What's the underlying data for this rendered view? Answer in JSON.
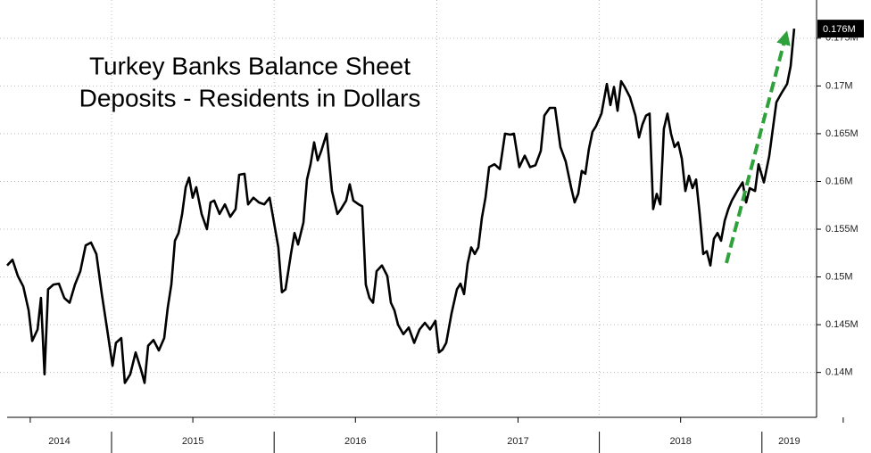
{
  "chart_data": {
    "type": "line",
    "title_lines": [
      "Turkey Banks Balance Sheet",
      "Deposits - Residents in Dollars"
    ],
    "color": "#000000",
    "x": [
      2014.358,
      2014.391,
      2014.424,
      2014.457,
      2014.49,
      2014.512,
      2014.545,
      2014.566,
      2014.588,
      2014.61,
      2014.643,
      2014.676,
      2014.709,
      2014.742,
      2014.775,
      2014.808,
      2014.841,
      2014.874,
      2014.907,
      2014.94,
      2014.973,
      2015.006,
      2015.027,
      2015.06,
      2015.082,
      2015.115,
      2015.148,
      2015.181,
      2015.203,
      2015.225,
      2015.258,
      2015.291,
      2015.324,
      2015.346,
      2015.368,
      2015.39,
      2015.412,
      2015.434,
      2015.456,
      2015.477,
      2015.499,
      2015.521,
      2015.554,
      2015.587,
      2015.609,
      2015.631,
      2015.664,
      2015.697,
      2015.73,
      2015.763,
      2015.785,
      2015.818,
      2015.84,
      2015.873,
      2015.906,
      2015.939,
      2015.972,
      2015.994,
      2016.026,
      2016.048,
      2016.07,
      2016.103,
      2016.125,
      2016.147,
      2016.18,
      2016.202,
      2016.224,
      2016.246,
      2016.268,
      2016.29,
      2016.323,
      2016.356,
      2016.389,
      2016.411,
      2016.443,
      2016.465,
      2016.487,
      2016.52,
      2016.542,
      2016.564,
      2016.586,
      2016.608,
      2016.63,
      2016.663,
      2016.696,
      2016.718,
      2016.74,
      2016.762,
      2016.795,
      2016.828,
      2016.861,
      2016.894,
      2016.927,
      2016.959,
      2016.992,
      2017.014,
      2017.036,
      2017.058,
      2017.091,
      2017.124,
      2017.146,
      2017.168,
      2017.19,
      2017.212,
      2017.234,
      2017.256,
      2017.278,
      2017.3,
      2017.322,
      2017.355,
      2017.388,
      2017.42,
      2017.453,
      2017.475,
      2017.508,
      2017.541,
      2017.574,
      2017.607,
      2017.64,
      2017.662,
      2017.695,
      2017.728,
      2017.761,
      2017.793,
      2017.826,
      2017.848,
      2017.87,
      2017.892,
      2017.914,
      2017.936,
      2017.958,
      2017.98,
      2018.013,
      2018.046,
      2018.068,
      2018.09,
      2018.112,
      2018.134,
      2018.156,
      2018.189,
      2018.222,
      2018.244,
      2018.266,
      2018.287,
      2018.309,
      2018.331,
      2018.353,
      2018.375,
      2018.397,
      2018.419,
      2018.441,
      2018.463,
      2018.485,
      2018.507,
      2018.529,
      2018.551,
      2018.573,
      2018.595,
      2018.617,
      2018.639,
      2018.661,
      2018.683,
      2018.705,
      2018.727,
      2018.749,
      2018.771,
      2018.793,
      2018.815,
      2018.848,
      2018.881,
      2018.903,
      2018.925,
      2018.958,
      2018.979,
      2019.012,
      2019.045,
      2019.067,
      2019.089,
      2019.122,
      2019.155,
      2019.177,
      2019.198
    ],
    "values": [
      0.1512,
      0.1518,
      0.1501,
      0.149,
      0.1465,
      0.1433,
      0.1445,
      0.1478,
      0.1398,
      0.1487,
      0.1492,
      0.1493,
      0.1478,
      0.1473,
      0.1492,
      0.1506,
      0.1533,
      0.1536,
      0.1524,
      0.1482,
      0.1445,
      0.1407,
      0.1431,
      0.1436,
      0.1389,
      0.1398,
      0.1421,
      0.1403,
      0.1389,
      0.1428,
      0.1434,
      0.1423,
      0.1436,
      0.1468,
      0.1492,
      0.1538,
      0.1546,
      0.1566,
      0.1594,
      0.1604,
      0.1583,
      0.1594,
      0.1566,
      0.155,
      0.1578,
      0.158,
      0.1566,
      0.1576,
      0.1563,
      0.1571,
      0.1607,
      0.1608,
      0.1576,
      0.1583,
      0.1578,
      0.1576,
      0.1583,
      0.1562,
      0.1531,
      0.1484,
      0.1487,
      0.1524,
      0.1546,
      0.1534,
      0.1557,
      0.1602,
      0.1618,
      0.1641,
      0.1622,
      0.1632,
      0.165,
      0.159,
      0.1566,
      0.1571,
      0.158,
      0.1597,
      0.158,
      0.1576,
      0.1574,
      0.1492,
      0.1478,
      0.1473,
      0.1506,
      0.1512,
      0.1501,
      0.1473,
      0.1465,
      0.145,
      0.144,
      0.1447,
      0.1431,
      0.1445,
      0.1452,
      0.1445,
      0.1454,
      0.1421,
      0.1424,
      0.1431,
      0.1462,
      0.1487,
      0.1493,
      0.1482,
      0.1514,
      0.1531,
      0.1524,
      0.1531,
      0.1562,
      0.1583,
      0.1615,
      0.1618,
      0.1613,
      0.165,
      0.1649,
      0.165,
      0.1615,
      0.1627,
      0.1615,
      0.1617,
      0.1632,
      0.1669,
      0.1677,
      0.1677,
      0.1636,
      0.1621,
      0.1594,
      0.1578,
      0.1587,
      0.1611,
      0.1608,
      0.1634,
      0.1652,
      0.1658,
      0.1671,
      0.1702,
      0.168,
      0.1699,
      0.1674,
      0.1705,
      0.1699,
      0.1688,
      0.1669,
      0.1646,
      0.166,
      0.1669,
      0.1671,
      0.1571,
      0.1587,
      0.1576,
      0.1655,
      0.1671,
      0.165,
      0.1636,
      0.1641,
      0.1624,
      0.159,
      0.1606,
      0.1593,
      0.1602,
      0.1566,
      0.1524,
      0.1527,
      0.1512,
      0.154,
      0.1546,
      0.1538,
      0.1559,
      0.1571,
      0.158,
      0.159,
      0.1599,
      0.1578,
      0.1593,
      0.159,
      0.1618,
      0.1599,
      0.1627,
      0.1655,
      0.1683,
      0.1693,
      0.1702,
      0.1721,
      0.176
    ],
    "xlim": [
      2014.314,
      2019.336
    ],
    "xticks": [
      2015,
      2016,
      2017,
      2018,
      2019
    ],
    "year_labels": [
      "2014",
      "2015",
      "2016",
      "2017",
      "2018",
      "2019"
    ],
    "ylim": [
      0.1353,
      0.179
    ],
    "yticks": [
      {
        "value": 0.14,
        "label": "0.14M"
      },
      {
        "value": 0.145,
        "label": "0.145M"
      },
      {
        "value": 0.15,
        "label": "0.15M"
      },
      {
        "value": 0.155,
        "label": "0.155M"
      },
      {
        "value": 0.16,
        "label": "0.16M"
      },
      {
        "value": 0.165,
        "label": "0.165M"
      },
      {
        "value": 0.17,
        "label": "0.17M"
      },
      {
        "value": 0.175,
        "label": "0.175M"
      }
    ],
    "annotations": [
      {
        "value": 0.176,
        "label": "0.176M"
      }
    ],
    "grid": true
  }
}
